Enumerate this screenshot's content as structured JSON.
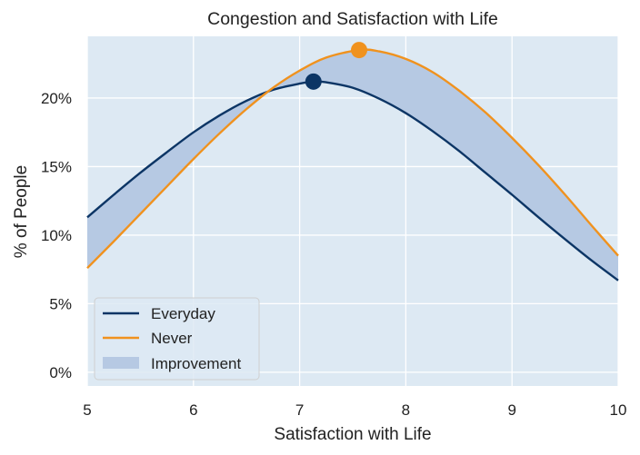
{
  "chart_data": {
    "type": "line",
    "title": "Congestion and Satisfaction with Life",
    "xlabel": "Satisfaction with Life",
    "ylabel": "% of People",
    "xlim": [
      5,
      10
    ],
    "ylim": [
      -1,
      24.5
    ],
    "xticks": [
      5,
      6,
      7,
      8,
      9,
      10
    ],
    "xtick_labels": [
      "5",
      "6",
      "7",
      "8",
      "9",
      "10"
    ],
    "yticks": [
      0,
      5,
      10,
      15,
      20
    ],
    "ytick_labels": [
      "0%",
      "5%",
      "10%",
      "15%",
      "20%"
    ],
    "grid": true,
    "legend_position": "lower-left",
    "series": [
      {
        "name": "Everyday",
        "color": "#0c3565",
        "x": [
          5.0,
          5.25,
          5.5,
          5.75,
          6.0,
          6.25,
          6.5,
          6.75,
          7.0,
          7.13,
          7.25,
          7.5,
          7.75,
          8.0,
          8.25,
          8.5,
          8.75,
          9.0,
          9.25,
          9.5,
          9.75,
          10.0
        ],
        "y": [
          11.3,
          12.95,
          14.55,
          16.05,
          17.5,
          18.75,
          19.8,
          20.6,
          21.05,
          21.2,
          21.15,
          20.75,
          19.95,
          18.9,
          17.6,
          16.15,
          14.55,
          12.95,
          11.3,
          9.7,
          8.15,
          6.7
        ],
        "peak": {
          "x": 7.13,
          "y": 21.2
        }
      },
      {
        "name": "Never",
        "color": "#f0921e",
        "x": [
          5.0,
          5.25,
          5.5,
          5.75,
          6.0,
          6.25,
          6.5,
          6.75,
          7.0,
          7.25,
          7.56,
          7.75,
          8.0,
          8.25,
          8.5,
          8.75,
          9.0,
          9.25,
          9.5,
          9.75,
          10.0
        ],
        "y": [
          7.6,
          9.55,
          11.55,
          13.55,
          15.55,
          17.45,
          19.2,
          20.75,
          22.0,
          22.95,
          23.5,
          23.4,
          22.85,
          21.9,
          20.55,
          18.95,
          17.1,
          15.1,
          12.95,
          10.7,
          8.5
        ],
        "peak": {
          "x": 7.56,
          "y": 23.5
        }
      }
    ],
    "fill_between": {
      "name": "Improvement",
      "color": "#b6c9e3",
      "between": [
        "Everyday",
        "Never"
      ]
    },
    "legend": [
      "Everyday",
      "Never",
      "Improvement"
    ]
  },
  "colors": {
    "plot_background": "#dde9f3",
    "grid": "#ffffff"
  }
}
